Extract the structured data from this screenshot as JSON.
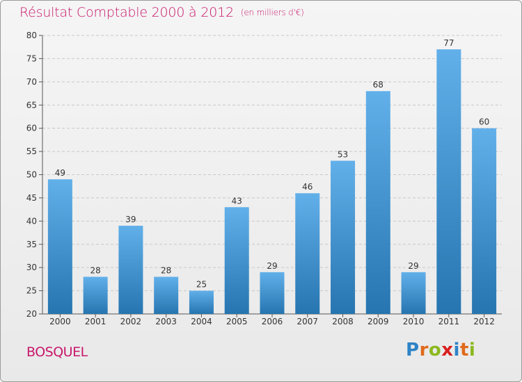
{
  "header": {
    "title": "Résultat Comptable 2000 à 2012",
    "subtitle": "(en milliers d'€)"
  },
  "commune": "BOSQUEL",
  "logo": {
    "text": "Proxiti",
    "letters": [
      {
        "ch": "P",
        "color": "#2e83c6"
      },
      {
        "ch": "r",
        "color": "#e06a1b"
      },
      {
        "ch": "o",
        "color": "#8cb820"
      },
      {
        "ch": "x",
        "color": "#d91f1f"
      },
      {
        "ch": "i",
        "color": "#2e83c6"
      },
      {
        "ch": "t",
        "color": "#e06a1b"
      },
      {
        "ch": "i",
        "color": "#8cb820"
      }
    ]
  },
  "colors": {
    "bar_light": "#62b0ea",
    "bar_dark": "#2675b0",
    "title": "#c8186b",
    "axis": "#555555"
  },
  "chart_data": {
    "type": "bar",
    "categories": [
      "2000",
      "2001",
      "2002",
      "2003",
      "2004",
      "2005",
      "2006",
      "2007",
      "2008",
      "2009",
      "2010",
      "2011",
      "2012"
    ],
    "values": [
      49,
      28,
      39,
      28,
      25,
      43,
      29,
      46,
      53,
      68,
      29,
      77,
      60
    ],
    "ylim": [
      20,
      80
    ],
    "yticks": [
      20,
      25,
      30,
      35,
      40,
      45,
      50,
      55,
      60,
      65,
      70,
      75,
      80
    ],
    "grid": true
  }
}
